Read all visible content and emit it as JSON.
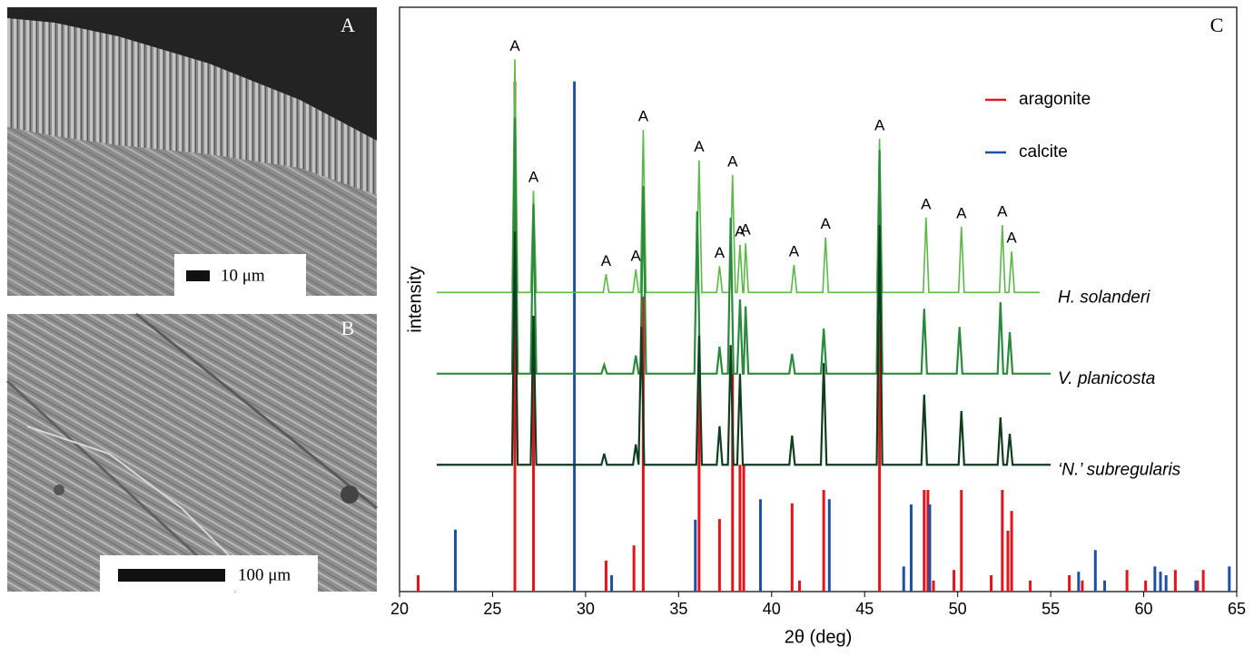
{
  "panels": [
    {
      "label": "A",
      "scale_bar": "10 μm"
    },
    {
      "label": "B",
      "scale_bar": "100 μm"
    }
  ],
  "chart_data": {
    "type": "xrd",
    "panel_label": "C",
    "xlabel": "2θ (deg)",
    "ylabel": "intensity",
    "xlim": [
      20,
      65
    ],
    "xticks": [
      20,
      25,
      30,
      35,
      40,
      45,
      50,
      55,
      60,
      65
    ],
    "ylim": [
      0,
      100
    ],
    "legend": "upper right",
    "series": [
      {
        "name": "aragonite",
        "color": "#e3141b",
        "x": [
          21.0,
          26.2,
          27.2,
          31.1,
          32.6,
          33.1,
          36.1,
          37.2,
          37.9,
          38.3,
          38.5,
          41.1,
          41.5,
          42.8,
          45.8,
          48.2,
          48.4,
          48.7,
          49.8,
          50.2,
          51.8,
          52.4,
          52.7,
          52.9,
          53.9,
          56.0,
          56.7,
          59.1,
          60.1,
          61.7,
          62.9,
          63.2
        ],
        "values": [
          2.8,
          87.3,
          43.5,
          5.3,
          7.9,
          50.5,
          36.0,
          12.4,
          37.3,
          21.7,
          21.7,
          15.1,
          1.9,
          17.4,
          46.6,
          17.4,
          17.4,
          1.9,
          3.7,
          17.4,
          2.8,
          17.4,
          10.4,
          13.8,
          1.9,
          2.8,
          1.9,
          3.7,
          1.9,
          3.7,
          1.9,
          3.7
        ]
      },
      {
        "name": "calcite",
        "color": "#1f4fa3",
        "x": [
          23.0,
          29.4,
          31.4,
          35.9,
          39.4,
          43.1,
          47.1,
          47.5,
          48.5,
          56.5,
          57.4,
          57.9,
          60.6,
          60.9,
          61.2,
          62.8,
          64.6
        ],
        "values": [
          10.6,
          87.3,
          2.8,
          12.3,
          15.8,
          15.8,
          4.3,
          14.9,
          14.9,
          3.4,
          7.1,
          1.9,
          4.3,
          3.4,
          2.8,
          1.9,
          4.3
        ]
      }
    ],
    "traces": [
      {
        "name": "H. solanderi",
        "color": "#5cb848",
        "x": [
          22,
          26.05,
          26.2,
          26.35,
          27.05,
          27.2,
          27.35,
          30.95,
          31.1,
          31.25,
          32.55,
          32.7,
          32.85,
          32.95,
          33.1,
          33.25,
          35.95,
          36.1,
          36.25,
          37.05,
          37.2,
          37.35,
          37.75,
          37.9,
          38.05,
          38.15,
          38.3,
          38.45,
          38.5,
          38.6,
          38.75,
          41.05,
          41.2,
          41.35,
          42.75,
          42.9,
          43.05,
          45.65,
          45.8,
          45.95,
          48.15,
          48.3,
          48.45,
          50.05,
          50.2,
          50.35,
          52.25,
          52.4,
          52.55,
          52.75,
          52.9,
          53.05,
          54.4
        ],
        "values": [
          51.2,
          51.2,
          91.1,
          51.2,
          51.2,
          68.6,
          51.2,
          51.2,
          54.3,
          51.2,
          51.2,
          55.1,
          51.2,
          51.2,
          79.0,
          51.2,
          51.2,
          73.8,
          51.2,
          51.2,
          55.7,
          51.2,
          51.2,
          71.3,
          51.2,
          51.2,
          59.3,
          51.2,
          51.2,
          59.6,
          51.2,
          51.2,
          55.9,
          51.2,
          51.2,
          60.6,
          51.2,
          51.2,
          77.5,
          51.2,
          51.2,
          64.0,
          51.2,
          51.2,
          62.4,
          51.2,
          51.2,
          62.7,
          51.2,
          51.2,
          58.2,
          51.2,
          51.2
        ],
        "labels": [
          null,
          null,
          "A",
          null,
          null,
          "A",
          null,
          null,
          "A",
          null,
          null,
          "A",
          null,
          null,
          "A",
          null,
          null,
          "A",
          null,
          null,
          "A",
          null,
          null,
          "A",
          null,
          null,
          "A",
          null,
          null,
          "A",
          null,
          null,
          "A",
          null,
          null,
          "A",
          null,
          null,
          "A",
          null,
          null,
          "A",
          null,
          null,
          "A",
          null,
          null,
          "A",
          null,
          null,
          "A",
          null,
          null
        ]
      },
      {
        "name": "V. planicosta",
        "color": "#2a8a3d",
        "x": [
          22,
          26.05,
          26.2,
          26.35,
          27.05,
          27.2,
          27.35,
          30.85,
          31.0,
          31.15,
          32.55,
          32.7,
          32.85,
          32.95,
          33.1,
          33.25,
          35.85,
          36.0,
          36.15,
          37.05,
          37.2,
          37.35,
          37.65,
          37.8,
          37.95,
          38.15,
          38.3,
          38.45,
          38.5,
          38.6,
          38.75,
          40.95,
          41.1,
          41.25,
          42.65,
          42.8,
          42.95,
          45.65,
          45.8,
          45.95,
          48.05,
          48.2,
          48.35,
          49.95,
          50.1,
          50.25,
          52.15,
          52.3,
          52.45,
          52.65,
          52.8,
          52.95,
          55
        ],
        "values": [
          37.3,
          37.3,
          81.1,
          37.3,
          37.3,
          66.3,
          37.3,
          37.3,
          38.8,
          37.3,
          37.3,
          40.4,
          37.3,
          37.3,
          69.4,
          37.3,
          37.3,
          65.1,
          37.3,
          37.3,
          41.9,
          37.3,
          37.3,
          64.0,
          37.3,
          37.3,
          50.0,
          37.3,
          37.3,
          48.8,
          37.3,
          37.3,
          40.7,
          37.3,
          37.3,
          45.0,
          37.3,
          37.3,
          75.6,
          37.3,
          37.3,
          48.4,
          37.3,
          37.3,
          45.3,
          37.3,
          37.3,
          49.5,
          37.3,
          37.3,
          44.4,
          37.3,
          37.3
        ]
      },
      {
        "name": "‘N.’ subregularis",
        "color": "#0f3d20",
        "x": [
          22,
          26.05,
          26.2,
          26.35,
          27.05,
          27.2,
          27.35,
          30.85,
          31.0,
          31.15,
          32.55,
          32.7,
          32.85,
          32.85,
          33.0,
          33.15,
          35.95,
          36.1,
          36.25,
          37.05,
          37.2,
          37.35,
          37.65,
          37.8,
          37.95,
          38.15,
          38.3,
          38.45,
          40.95,
          41.1,
          41.25,
          42.65,
          42.8,
          42.95,
          45.65,
          45.8,
          45.95,
          48.05,
          48.2,
          48.35,
          50.05,
          50.2,
          50.35,
          52.15,
          52.3,
          52.45,
          52.65,
          52.8,
          52.95,
          55
        ],
        "values": [
          21.7,
          21.7,
          61.6,
          21.7,
          21.7,
          47.2,
          21.7,
          21.7,
          23.6,
          21.7,
          21.7,
          25.2,
          21.7,
          21.7,
          45.3,
          21.7,
          21.7,
          43.8,
          21.7,
          21.7,
          28.3,
          21.7,
          21.7,
          42.2,
          21.7,
          21.7,
          37.3,
          21.7,
          21.7,
          26.7,
          21.7,
          21.7,
          39.1,
          21.7,
          21.7,
          62.7,
          21.7,
          21.7,
          33.7,
          21.7,
          21.7,
          30.9,
          21.7,
          21.7,
          29.8,
          21.7,
          21.7,
          27.0,
          21.7,
          21.7
        ]
      }
    ]
  }
}
